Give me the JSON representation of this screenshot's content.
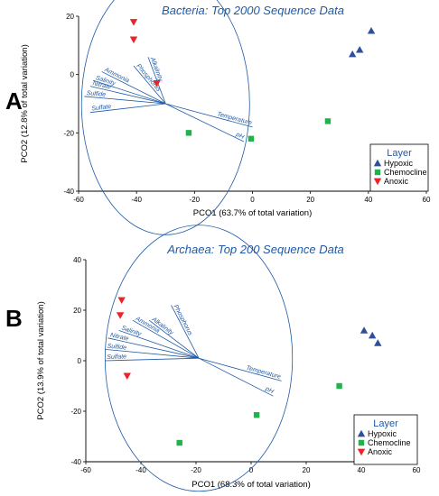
{
  "colors": {
    "hypoxic": "#2f4f9a",
    "chemocline": "#22b24c",
    "anoxic": "#e8232a",
    "vector": "#1f5aa6",
    "axis": "#000000"
  },
  "chart_data": [
    {
      "type": "scatter",
      "panel": "A",
      "title": "Bacteria: Top 2000 Sequence Data",
      "xlabel": "PCO1 (63.7% of total variation)",
      "ylabel": "PCO2 (12.8% of total variation)",
      "xlim": [
        -60,
        60
      ],
      "ylim": [
        -40,
        20
      ],
      "xticks": [
        -60,
        -40,
        -20,
        0,
        20,
        40,
        60
      ],
      "yticks": [
        -40,
        -20,
        0,
        20
      ],
      "legend": {
        "title": "Layer",
        "placement": "bottom-right",
        "entries": [
          "Hypoxic",
          "Chemocline",
          "Anoxic"
        ]
      },
      "series": [
        {
          "name": "Hypoxic",
          "marker": "triangle-up",
          "points": [
            [
              34.5,
              7
            ],
            [
              37,
              8.5
            ],
            [
              41,
              15
            ]
          ]
        },
        {
          "name": "Chemocline",
          "marker": "square",
          "points": [
            [
              -22,
              -20
            ],
            [
              -0.5,
              -22
            ],
            [
              26,
              -16
            ]
          ]
        },
        {
          "name": "Anoxic",
          "marker": "triangle-down",
          "points": [
            [
              -41,
              18
            ],
            [
              -41,
              12
            ],
            [
              -33,
              -3
            ]
          ]
        }
      ],
      "circle": {
        "center": [
          -30,
          -10
        ],
        "radius": 29
      },
      "vectors": [
        {
          "label": "Alkalinity",
          "end": [
            -36,
            6
          ]
        },
        {
          "label": "Phosphorus",
          "end": [
            -41,
            3
          ]
        },
        {
          "label": "Ammonia",
          "end": [
            -52,
            1
          ]
        },
        {
          "label": "Salinity",
          "end": [
            -55,
            -2
          ]
        },
        {
          "label": "Nitrate",
          "end": [
            -56,
            -4
          ]
        },
        {
          "label": "Sulfide",
          "end": [
            -58,
            -7.5
          ]
        },
        {
          "label": "Sulfate",
          "end": [
            -56,
            -13
          ]
        },
        {
          "label": "Temperature",
          "end": [
            0,
            -18
          ]
        },
        {
          "label": "pH",
          "end": [
            -3,
            -23
          ]
        }
      ]
    },
    {
      "type": "scatter",
      "panel": "B",
      "title": "Archaea: Top 200 Sequence Data",
      "xlabel": "PCO1 (68.3% of total variation)",
      "ylabel": "PCO2 (13.9% of total variation)",
      "xlim": [
        -60,
        60
      ],
      "ylim": [
        -40,
        40
      ],
      "xticks": [
        -60,
        -40,
        -20,
        0,
        20,
        40,
        60
      ],
      "yticks": [
        -40,
        -20,
        0,
        20,
        40
      ],
      "legend": {
        "title": "Layer",
        "placement": "bottom-right",
        "entries": [
          "Hypoxic",
          "Chemocline",
          "Anoxic"
        ]
      },
      "series": [
        {
          "name": "Hypoxic",
          "marker": "triangle-up",
          "points": [
            [
              41,
              12
            ],
            [
              44,
              10
            ],
            [
              46,
              7
            ]
          ]
        },
        {
          "name": "Chemocline",
          "marker": "square",
          "points": [
            [
              -26,
              -32.5
            ],
            [
              2,
              -21.5
            ],
            [
              32,
              -10
            ]
          ]
        },
        {
          "name": "Anoxic",
          "marker": "triangle-down",
          "points": [
            [
              -47,
              24
            ],
            [
              -47.5,
              18
            ],
            [
              -45,
              -6
            ]
          ]
        }
      ],
      "circle": {
        "center": [
          -19,
          1
        ],
        "radius": 34
      },
      "vectors": [
        {
          "label": "Phosphorus",
          "end": [
            -29,
            22
          ]
        },
        {
          "label": "Alkalinity",
          "end": [
            -37,
            16
          ]
        },
        {
          "label": "Ammonia",
          "end": [
            -43,
            16
          ]
        },
        {
          "label": "Salinity",
          "end": [
            -48,
            12
          ]
        },
        {
          "label": "Nitrate",
          "end": [
            -52,
            9
          ]
        },
        {
          "label": "Sulfide",
          "end": [
            -53,
            4.5
          ]
        },
        {
          "label": "Sulfate",
          "end": [
            -53,
            0
          ]
        },
        {
          "label": "Temperature",
          "end": [
            11,
            -8
          ]
        },
        {
          "label": "pH",
          "end": [
            8,
            -14
          ]
        }
      ]
    }
  ]
}
